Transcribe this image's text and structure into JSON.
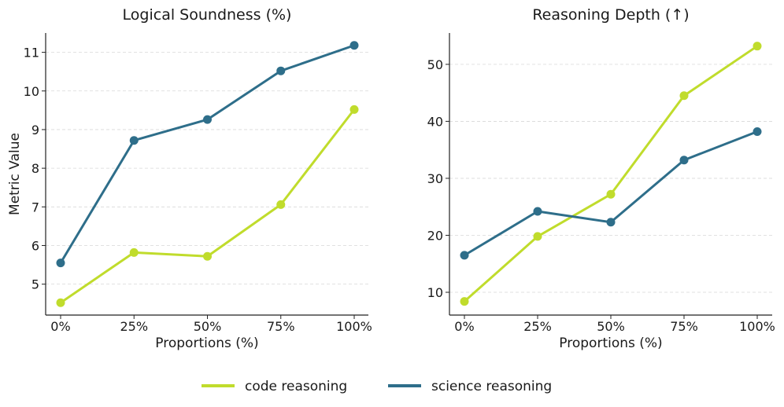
{
  "chart_data": [
    {
      "type": "line",
      "title": "Logical Soundness (%)",
      "xlabel": "Proportions (%)",
      "ylabel": "Metric Value",
      "categories": [
        "0%",
        "25%",
        "50%",
        "75%",
        "100%"
      ],
      "ylim": [
        4.2,
        11.5
      ],
      "yticks": [
        5,
        6,
        7,
        8,
        9,
        10,
        11
      ],
      "grid": "horizontal dashed",
      "series": [
        {
          "name": "code reasoning",
          "color": "#c0dc2c",
          "values": [
            4.52,
            5.82,
            5.72,
            7.06,
            9.52
          ]
        },
        {
          "name": "science reasoning",
          "color": "#2e6e8a",
          "values": [
            5.55,
            8.72,
            9.26,
            10.52,
            11.18
          ]
        }
      ]
    },
    {
      "type": "line",
      "title": "Reasoning Depth (↑)",
      "xlabel": "Proportions (%)",
      "ylabel": "",
      "categories": [
        "0%",
        "25%",
        "50%",
        "75%",
        "100%"
      ],
      "ylim": [
        6,
        55.5
      ],
      "yticks": [
        10,
        20,
        30,
        40,
        50
      ],
      "grid": "horizontal dashed",
      "series": [
        {
          "name": "code reasoning",
          "color": "#c0dc2c",
          "values": [
            8.4,
            19.8,
            27.2,
            44.5,
            53.2
          ]
        },
        {
          "name": "science reasoning",
          "color": "#2e6e8a",
          "values": [
            16.5,
            24.2,
            22.3,
            33.2,
            38.2
          ]
        }
      ]
    }
  ],
  "legend": {
    "position": "bottom-center",
    "items": [
      {
        "label": "code reasoning",
        "color": "#c0dc2c"
      },
      {
        "label": "science reasoning",
        "color": "#2e6e8a"
      }
    ]
  }
}
